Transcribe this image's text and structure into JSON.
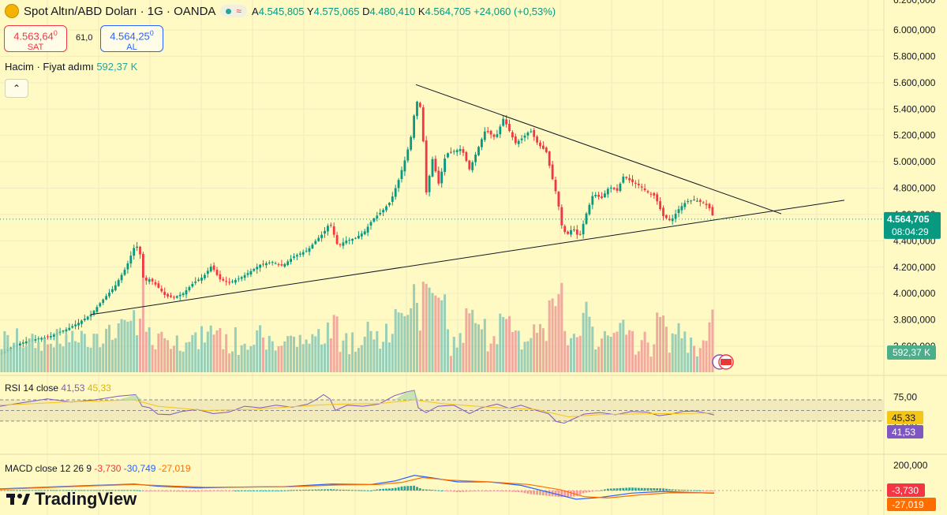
{
  "header": {
    "symbol": "Spot Altın/ABD Doları · 1G · OANDA",
    "open_label": "A",
    "open": "4.545,805",
    "high_label": "Y",
    "high": "4.575,065",
    "low_label": "D",
    "low": "4.480,410",
    "close_label": "K",
    "close": "4.564,705",
    "change": "+24,060 (+0,53%)",
    "approx_symbol": "≈"
  },
  "trade": {
    "sell_price": "4.563,64",
    "sell_sup": "0",
    "sell_label": "SAT",
    "spread": "61,0",
    "buy_price": "4.564,25",
    "buy_sup": "0",
    "buy_label": "AL"
  },
  "volume_label": {
    "name": "Hacim · Fiyat adımı",
    "value": "592,37 K"
  },
  "collapse_symbol": "⌃",
  "rsi": {
    "name": "RSI 14 close",
    "value": "41,53",
    "ma": "45,33"
  },
  "macd": {
    "name": "MACD close 12 26 9",
    "hist": "-3,730",
    "macd": "-30,749",
    "signal": "-27,019"
  },
  "brand": "TradingView",
  "colors": {
    "bg": "#fff9c4",
    "up": "#089981",
    "down": "#f23645",
    "rsi": "#7e57c2",
    "rsi_ma": "#f5c518",
    "macd": "#2962ff",
    "signal": "#ff6d00"
  },
  "chart_data": {
    "type": "candlestick",
    "price_axis": {
      "ticks": [
        "6.000,000",
        "5.800,000",
        "5.600,000",
        "5.400,000",
        "5.200,000",
        "5.000,000",
        "4.800,000",
        "4.600,000",
        "4.400,000",
        "4.200,000",
        "4.000,000",
        "3.800,000",
        "3.600,000"
      ],
      "tick_values": [
        6000,
        5800,
        5600,
        5400,
        5200,
        5000,
        4800,
        4600,
        4400,
        4200,
        4000,
        3800,
        3600
      ],
      "top_cut": "6.200,000"
    },
    "last_price": "4.564,705",
    "countdown": "08:04:29",
    "volume_tag": "592,37 K",
    "rsi_axis": {
      "ticks": [
        "75,00",
        "25,00"
      ],
      "tick_values": [
        75,
        25
      ],
      "tags": [
        "45,33",
        "41,53"
      ]
    },
    "macd_axis": {
      "ticks": [
        "200,000"
      ],
      "tags": [
        "-3,730",
        "-27,019"
      ]
    },
    "close_path": [
      [
        0,
        3540
      ],
      [
        8,
        3570
      ],
      [
        20,
        3610
      ],
      [
        35,
        3640
      ],
      [
        50,
        3660
      ],
      [
        62,
        3670
      ],
      [
        72,
        3700
      ],
      [
        85,
        3730
      ],
      [
        100,
        3780
      ],
      [
        115,
        3840
      ],
      [
        130,
        3950
      ],
      [
        145,
        4050
      ],
      [
        160,
        4200
      ],
      [
        172,
        4380
      ],
      [
        178,
        4290
      ],
      [
        182,
        4090
      ],
      [
        190,
        4110
      ],
      [
        200,
        4050
      ],
      [
        210,
        3980
      ],
      [
        220,
        3970
      ],
      [
        232,
        4000
      ],
      [
        245,
        4080
      ],
      [
        258,
        4130
      ],
      [
        268,
        4210
      ],
      [
        278,
        4110
      ],
      [
        290,
        4080
      ],
      [
        305,
        4120
      ],
      [
        318,
        4170
      ],
      [
        330,
        4220
      ],
      [
        345,
        4240
      ],
      [
        358,
        4210
      ],
      [
        372,
        4280
      ],
      [
        390,
        4330
      ],
      [
        400,
        4400
      ],
      [
        410,
        4460
      ],
      [
        418,
        4540
      ],
      [
        428,
        4360
      ],
      [
        438,
        4400
      ],
      [
        450,
        4420
      ],
      [
        462,
        4470
      ],
      [
        472,
        4560
      ],
      [
        485,
        4630
      ],
      [
        495,
        4700
      ],
      [
        505,
        4860
      ],
      [
        515,
        5050
      ],
      [
        522,
        5220
      ],
      [
        527,
        5470
      ],
      [
        534,
        5400
      ],
      [
        540,
        4760
      ],
      [
        548,
        5020
      ],
      [
        556,
        4830
      ],
      [
        565,
        5060
      ],
      [
        575,
        5080
      ],
      [
        585,
        5100
      ],
      [
        595,
        4940
      ],
      [
        605,
        5090
      ],
      [
        615,
        5240
      ],
      [
        628,
        5180
      ],
      [
        638,
        5330
      ],
      [
        645,
        5240
      ],
      [
        653,
        5140
      ],
      [
        662,
        5180
      ],
      [
        672,
        5240
      ],
      [
        682,
        5130
      ],
      [
        692,
        5080
      ],
      [
        700,
        4870
      ],
      [
        706,
        4730
      ],
      [
        712,
        4510
      ],
      [
        718,
        4440
      ],
      [
        726,
        4500
      ],
      [
        734,
        4420
      ],
      [
        742,
        4590
      ],
      [
        752,
        4760
      ],
      [
        762,
        4720
      ],
      [
        772,
        4810
      ],
      [
        782,
        4780
      ],
      [
        790,
        4890
      ],
      [
        800,
        4850
      ],
      [
        810,
        4820
      ],
      [
        820,
        4770
      ],
      [
        830,
        4740
      ],
      [
        840,
        4590
      ],
      [
        850,
        4550
      ],
      [
        860,
        4640
      ],
      [
        870,
        4700
      ],
      [
        880,
        4710
      ],
      [
        890,
        4690
      ],
      [
        898,
        4660
      ],
      [
        905,
        4565
      ]
    ],
    "trendlines": [
      {
        "name": "resistance",
        "from": [
          527,
          5585
        ],
        "to": [
          990,
          4605
        ]
      },
      {
        "name": "support",
        "from": [
          115,
          3840
        ],
        "to": [
          1070,
          4708
        ]
      }
    ],
    "rsi_series": [
      [
        0,
        58
      ],
      [
        30,
        65
      ],
      [
        60,
        72
      ],
      [
        90,
        66
      ],
      [
        120,
        70
      ],
      [
        150,
        77
      ],
      [
        172,
        80
      ],
      [
        180,
        58
      ],
      [
        190,
        55
      ],
      [
        200,
        43
      ],
      [
        215,
        42
      ],
      [
        230,
        48
      ],
      [
        250,
        52
      ],
      [
        270,
        44
      ],
      [
        290,
        47
      ],
      [
        310,
        58
      ],
      [
        330,
        55
      ],
      [
        350,
        60
      ],
      [
        370,
        56
      ],
      [
        390,
        62
      ],
      [
        400,
        70
      ],
      [
        410,
        80
      ],
      [
        418,
        72
      ],
      [
        425,
        50
      ],
      [
        440,
        60
      ],
      [
        460,
        58
      ],
      [
        480,
        62
      ],
      [
        500,
        78
      ],
      [
        515,
        85
      ],
      [
        525,
        88
      ],
      [
        530,
        55
      ],
      [
        540,
        46
      ],
      [
        555,
        58
      ],
      [
        575,
        60
      ],
      [
        595,
        44
      ],
      [
        610,
        55
      ],
      [
        630,
        62
      ],
      [
        645,
        54
      ],
      [
        660,
        60
      ],
      [
        680,
        50
      ],
      [
        695,
        44
      ],
      [
        705,
        29
      ],
      [
        715,
        26
      ],
      [
        725,
        33
      ],
      [
        740,
        43
      ],
      [
        760,
        46
      ],
      [
        780,
        42
      ],
      [
        800,
        48
      ],
      [
        820,
        47
      ],
      [
        835,
        40
      ],
      [
        850,
        43
      ],
      [
        865,
        48
      ],
      [
        880,
        49
      ],
      [
        895,
        45
      ],
      [
        905,
        41.5
      ]
    ],
    "rsi_ma_series": [
      [
        0,
        60
      ],
      [
        100,
        67
      ],
      [
        170,
        70
      ],
      [
        200,
        58
      ],
      [
        260,
        50
      ],
      [
        320,
        52
      ],
      [
        400,
        60
      ],
      [
        430,
        62
      ],
      [
        480,
        63
      ],
      [
        525,
        70
      ],
      [
        560,
        63
      ],
      [
        620,
        56
      ],
      [
        680,
        52
      ],
      [
        720,
        38
      ],
      [
        760,
        42
      ],
      [
        820,
        44
      ],
      [
        860,
        44
      ],
      [
        905,
        45.3
      ]
    ],
    "macd_series": [
      [
        0,
        20
      ],
      [
        60,
        40
      ],
      [
        120,
        60
      ],
      [
        170,
        75
      ],
      [
        200,
        50
      ],
      [
        250,
        30
      ],
      [
        300,
        40
      ],
      [
        360,
        45
      ],
      [
        420,
        75
      ],
      [
        470,
        70
      ],
      [
        500,
        110
      ],
      [
        525,
        175
      ],
      [
        545,
        150
      ],
      [
        580,
        100
      ],
      [
        620,
        100
      ],
      [
        660,
        60
      ],
      [
        700,
        -30
      ],
      [
        730,
        -100
      ],
      [
        760,
        -80
      ],
      [
        800,
        -30
      ],
      [
        840,
        -10
      ],
      [
        870,
        -20
      ],
      [
        905,
        -31
      ]
    ],
    "signal_series": [
      [
        0,
        15
      ],
      [
        60,
        35
      ],
      [
        120,
        55
      ],
      [
        170,
        70
      ],
      [
        210,
        55
      ],
      [
        260,
        38
      ],
      [
        310,
        40
      ],
      [
        370,
        45
      ],
      [
        430,
        65
      ],
      [
        480,
        70
      ],
      [
        510,
        95
      ],
      [
        535,
        150
      ],
      [
        570,
        120
      ],
      [
        620,
        100
      ],
      [
        670,
        70
      ],
      [
        710,
        10
      ],
      [
        740,
        -70
      ],
      [
        770,
        -85
      ],
      [
        810,
        -50
      ],
      [
        850,
        -25
      ],
      [
        905,
        -27
      ]
    ]
  }
}
